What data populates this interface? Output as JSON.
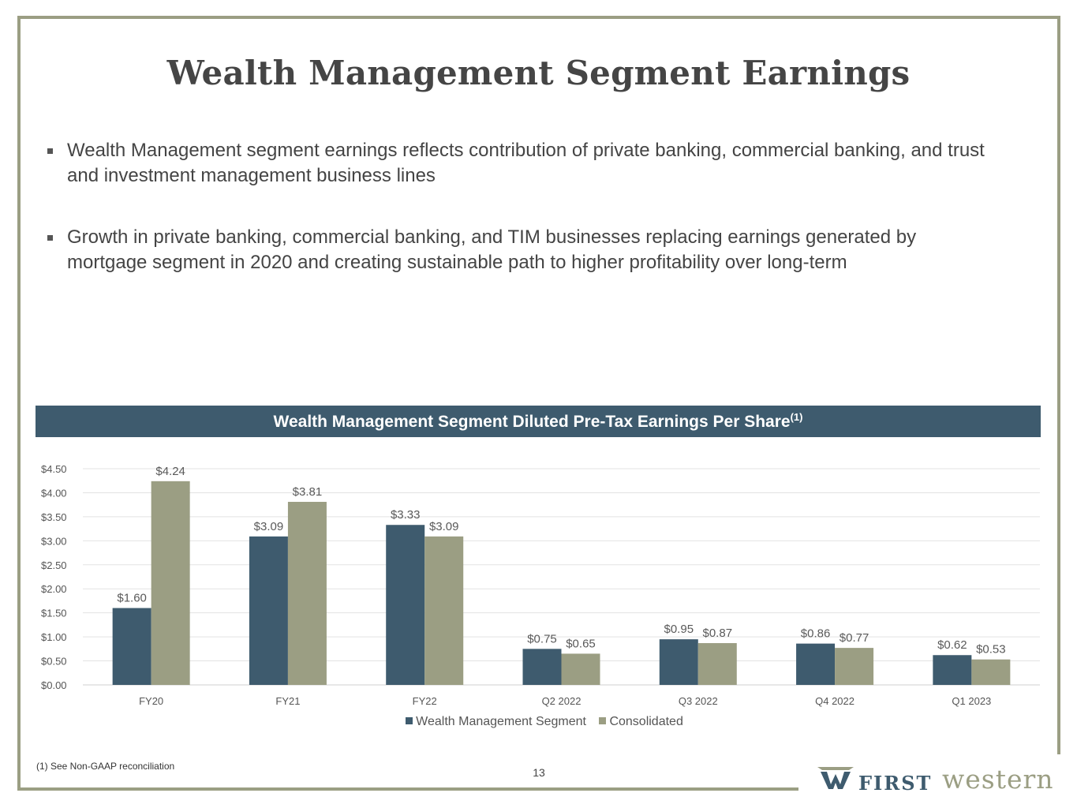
{
  "title": "Wealth Management Segment Earnings",
  "bullets": [
    "Wealth Management segment earnings reflects contribution of private banking, commercial banking, and trust and investment management business lines",
    "Growth in private banking, commercial banking, and TIM businesses replacing earnings generated by mortgage segment in 2020 and creating sustainable path to higher profitability over long-term"
  ],
  "chart_header": {
    "text": "Wealth Management Segment Diluted Pre-Tax Earnings Per Share",
    "superscript": "(1)"
  },
  "chart_data": {
    "type": "bar",
    "title": "Wealth Management Segment Diluted Pre-Tax Earnings Per Share(1)",
    "categories": [
      "FY20",
      "FY21",
      "FY22",
      "Q2 2022",
      "Q3 2022",
      "Q4 2022",
      "Q1 2023"
    ],
    "series": [
      {
        "name": "Wealth Management Segment",
        "color": "#3e5b6e",
        "values": [
          1.6,
          3.09,
          3.33,
          0.75,
          0.95,
          0.86,
          0.62
        ],
        "labels": [
          "$1.60",
          "$3.09",
          "$3.33",
          "$0.75",
          "$0.95",
          "$0.86",
          "$0.62"
        ]
      },
      {
        "name": "Consolidated",
        "color": "#9b9e83",
        "values": [
          4.24,
          3.81,
          3.09,
          0.65,
          0.87,
          0.77,
          0.53
        ],
        "labels": [
          "$4.24",
          "$3.81",
          "$3.09",
          "$0.65",
          "$0.87",
          "$0.77",
          "$0.53"
        ]
      }
    ],
    "ylim": [
      0,
      4.5
    ],
    "yticks": [
      "$0.00",
      "$0.50",
      "$1.00",
      "$1.50",
      "$2.00",
      "$2.50",
      "$3.00",
      "$3.50",
      "$4.00",
      "$4.50"
    ],
    "xlabel": "",
    "ylabel": "",
    "grid": true,
    "legend_position": "bottom"
  },
  "footnote": "(1)  See Non-GAAP reconciliation",
  "page_number": "13",
  "logo": {
    "first": "FIRST",
    "western": "western",
    "primary_color": "#3e5b6e",
    "secondary_color": "#9b9e83"
  }
}
